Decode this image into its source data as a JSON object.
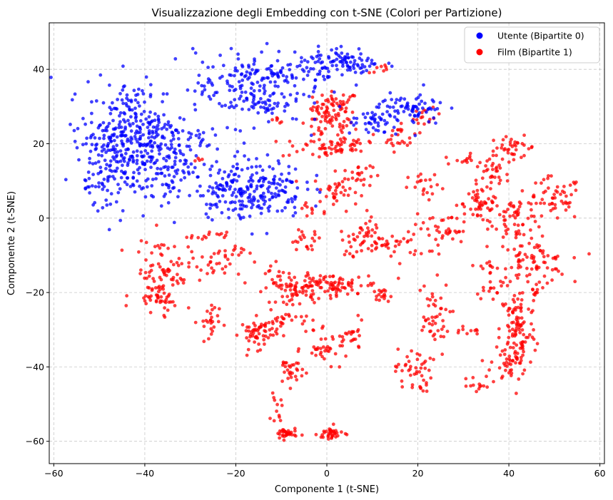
{
  "chart_data": {
    "type": "scatter",
    "title": "Visualizzazione degli Embedding con t-SNE (Colori per Partizione)",
    "xlabel": "Componente 1 (t-SNE)",
    "ylabel": "Componente 2 (t-SNE)",
    "xlim": [
      -61,
      61
    ],
    "ylim": [
      -66,
      52.5
    ],
    "xticks": [
      -60,
      -40,
      -20,
      0,
      20,
      40,
      60
    ],
    "yticks": [
      -60,
      -40,
      -20,
      0,
      20,
      40
    ],
    "xtick_labels": [
      "−60",
      "−40",
      "−20",
      "0",
      "20",
      "40",
      "60"
    ],
    "ytick_labels": [
      "−60",
      "−40",
      "−20",
      "0",
      "20",
      "40"
    ],
    "grid": true,
    "legend_position": "top-right",
    "series": [
      {
        "name": "Utente (Bipartite 0)",
        "color": "#0000ff",
        "clusters": [
          {
            "cx": -42,
            "cy": 21,
            "sx": 5.5,
            "sy": 8,
            "n": 380
          },
          {
            "cx": -50,
            "cy": 14,
            "sx": 3,
            "sy": 5,
            "n": 60
          },
          {
            "cx": -34,
            "cy": 14,
            "sx": 3,
            "sy": 6,
            "n": 60
          },
          {
            "cx": -17,
            "cy": 35,
            "sx": 6,
            "sy": 5,
            "n": 200
          },
          {
            "cx": -17,
            "cy": 8,
            "sx": 6,
            "sy": 4,
            "n": 240
          },
          {
            "cx": 4,
            "cy": 42,
            "sx": 4,
            "sy": 2,
            "n": 90
          },
          {
            "cx": -3,
            "cy": 38,
            "sx": 2,
            "sy": 3,
            "n": 25
          },
          {
            "cx": 18,
            "cy": 29,
            "sx": 4,
            "sy": 2.5,
            "n": 90
          },
          {
            "cx": 10,
            "cy": 25,
            "sx": 3,
            "sy": 1.2,
            "n": 25
          },
          {
            "cx": -27,
            "cy": 21,
            "sx": 2,
            "sy": 2,
            "n": 15
          },
          {
            "cx": -10,
            "cy": 39,
            "sx": 2,
            "sy": 1,
            "n": 10
          }
        ]
      },
      {
        "name": "Film (Bipartite 1)",
        "color": "#ff0000",
        "clusters": [
          {
            "cx": 2,
            "cy": 30,
            "sx": 2.5,
            "sy": 2,
            "n": 60
          },
          {
            "cx": 0,
            "cy": 25,
            "sx": 3,
            "sy": 2,
            "n": 40
          },
          {
            "cx": -2,
            "cy": 19,
            "sx": 4,
            "sy": 1.5,
            "n": 40
          },
          {
            "cx": 6,
            "cy": 20,
            "sx": 3,
            "sy": 1.5,
            "n": 25
          },
          {
            "cx": 2,
            "cy": 7,
            "sx": 2.5,
            "sy": 2.5,
            "n": 40
          },
          {
            "cx": 7,
            "cy": 12,
            "sx": 1.5,
            "sy": 2,
            "n": 20
          },
          {
            "cx": 16,
            "cy": 22,
            "sx": 2,
            "sy": 2,
            "n": 25
          },
          {
            "cx": 22,
            "cy": 27,
            "sx": 1.5,
            "sy": 1.2,
            "n": 15
          },
          {
            "cx": 41,
            "cy": 19,
            "sx": 2.5,
            "sy": 1.5,
            "n": 35
          },
          {
            "cx": 36,
            "cy": 11,
            "sx": 2,
            "sy": 3,
            "n": 40
          },
          {
            "cx": 34,
            "cy": 4,
            "sx": 2,
            "sy": 3,
            "n": 40
          },
          {
            "cx": 50,
            "cy": 5,
            "sx": 3,
            "sy": 3,
            "n": 50
          },
          {
            "cx": 42,
            "cy": 0,
            "sx": 3,
            "sy": 3,
            "n": 60
          },
          {
            "cx": 45,
            "cy": -12,
            "sx": 4,
            "sy": 3,
            "n": 80
          },
          {
            "cx": 42,
            "cy": -30,
            "sx": 2,
            "sy": 6,
            "n": 100
          },
          {
            "cx": 40,
            "cy": -39,
            "sx": 2,
            "sy": 3,
            "n": 40
          },
          {
            "cx": 36,
            "cy": -16,
            "sx": 1.5,
            "sy": 3,
            "n": 25
          },
          {
            "cx": 23,
            "cy": -27,
            "sx": 2,
            "sy": 5,
            "n": 45
          },
          {
            "cx": 19,
            "cy": -41,
            "sx": 2,
            "sy": 3,
            "n": 45
          },
          {
            "cx": 26,
            "cy": -3,
            "sx": 3,
            "sy": 3,
            "n": 40
          },
          {
            "cx": 22,
            "cy": 8,
            "sx": 2,
            "sy": 2,
            "n": 20
          },
          {
            "cx": 14,
            "cy": -7,
            "sx": 4,
            "sy": 2,
            "n": 45
          },
          {
            "cx": 7,
            "cy": -6,
            "sx": 2,
            "sy": 2,
            "n": 25
          },
          {
            "cx": 0,
            "cy": -18,
            "sx": 6,
            "sy": 1.5,
            "n": 110
          },
          {
            "cx": -7,
            "cy": -20,
            "sx": 2,
            "sy": 1.5,
            "n": 40
          },
          {
            "cx": -5,
            "cy": -6,
            "sx": 2,
            "sy": 1.5,
            "n": 20
          },
          {
            "cx": -15,
            "cy": -31,
            "sx": 2,
            "sy": 2,
            "n": 55
          },
          {
            "cx": -9,
            "cy": -28,
            "sx": 3,
            "sy": 1.5,
            "n": 30
          },
          {
            "cx": -8,
            "cy": -41,
            "sx": 1.5,
            "sy": 2,
            "n": 30
          },
          {
            "cx": 0,
            "cy": -35,
            "sx": 2.5,
            "sy": 2,
            "n": 35
          },
          {
            "cx": 6,
            "cy": -32,
            "sx": 1,
            "sy": 2,
            "n": 20
          },
          {
            "cx": -9,
            "cy": -58,
            "sx": 1.2,
            "sy": 0.8,
            "n": 35
          },
          {
            "cx": 1,
            "cy": -58,
            "sx": 1.5,
            "sy": 1,
            "n": 35
          },
          {
            "cx": -11,
            "cy": -52,
            "sx": 0.6,
            "sy": 2,
            "n": 12
          },
          {
            "cx": -36,
            "cy": -15,
            "sx": 3,
            "sy": 5,
            "n": 100
          },
          {
            "cx": -39,
            "cy": -22,
            "sx": 2,
            "sy": 1,
            "n": 15
          },
          {
            "cx": -26,
            "cy": -28,
            "sx": 1.2,
            "sy": 3,
            "n": 25
          },
          {
            "cx": -25,
            "cy": -13,
            "sx": 2,
            "sy": 2,
            "n": 25
          },
          {
            "cx": -20,
            "cy": -9,
            "sx": 1.2,
            "sy": 1,
            "n": 10
          },
          {
            "cx": -26,
            "cy": -5,
            "sx": 2,
            "sy": 0.6,
            "n": 15
          },
          {
            "cx": -12,
            "cy": -15,
            "sx": 1.5,
            "sy": 2,
            "n": 12
          },
          {
            "cx": 12,
            "cy": -21,
            "sx": 1,
            "sy": 1,
            "n": 15
          },
          {
            "cx": 30,
            "cy": 16,
            "sx": 2,
            "sy": 1,
            "n": 12
          },
          {
            "cx": 46,
            "cy": -20,
            "sx": 1,
            "sy": 1,
            "n": 8
          },
          {
            "cx": 33,
            "cy": -45,
            "sx": 1,
            "sy": 1,
            "n": 12
          },
          {
            "cx": 31,
            "cy": -30,
            "sx": 1.5,
            "sy": 0.6,
            "n": 10
          },
          {
            "cx": 12,
            "cy": 40,
            "sx": 0.8,
            "sy": 0.6,
            "n": 8
          },
          {
            "cx": -11,
            "cy": 26,
            "sx": 0.6,
            "sy": 0.6,
            "n": 6
          },
          {
            "cx": -28,
            "cy": 16,
            "sx": 0.6,
            "sy": 0.6,
            "n": 4
          },
          {
            "cx": -4,
            "cy": 3,
            "sx": 1,
            "sy": 1,
            "n": 8
          },
          {
            "cx": 9,
            "cy": -2,
            "sx": 1,
            "sy": 2,
            "n": 10
          }
        ]
      }
    ]
  }
}
